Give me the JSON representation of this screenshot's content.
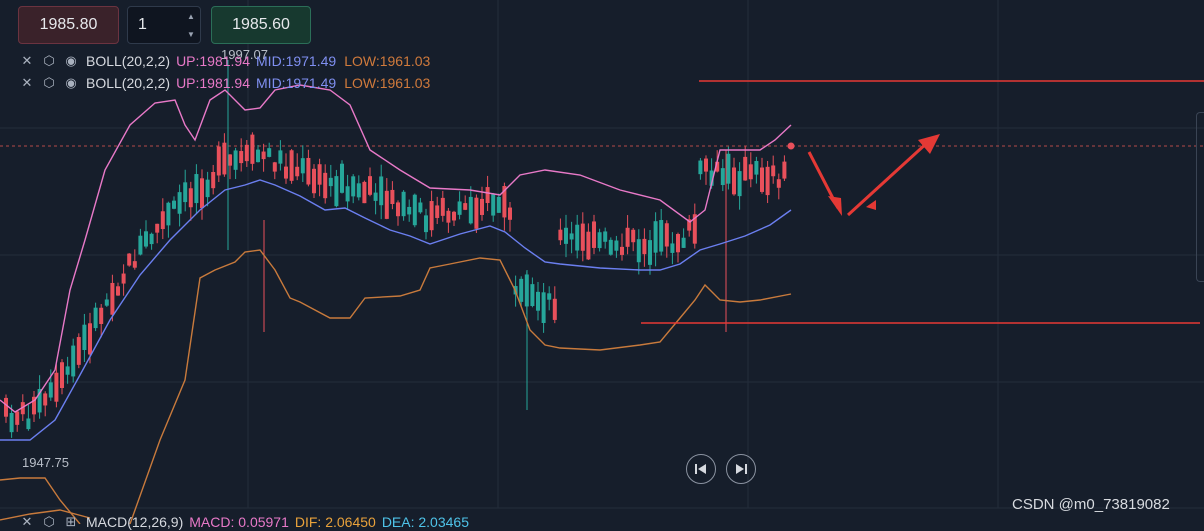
{
  "trade_bar": {
    "sell_price": "1985.80",
    "quantity": "1",
    "buy_price": "1985.60",
    "increment_icon": "triangle-up-icon",
    "decrement_icon": "triangle-down-icon"
  },
  "indicators": {
    "boll_rows": [
      {
        "name": "BOLL(20,2,2)",
        "up": "UP:1981.94",
        "mid": "MID:1971.49",
        "low": "LOW:1961.03"
      },
      {
        "name": "BOLL(20,2,2)",
        "up": "UP:1981.94",
        "mid": "MID:1971.49",
        "low": "LOW:1961.03"
      }
    ],
    "macd_row": {
      "name": "MACD(12,26,9)",
      "macd": "MACD: 0.05971",
      "dif": "DIF: 2.06450",
      "dea": "DEA: 2.03465"
    },
    "icons": [
      "close-icon",
      "settings-icon",
      "eye-icon"
    ]
  },
  "chart": {
    "high_marker": "1997.07",
    "low_marker": "1947.75",
    "colors": {
      "background": "#161e2b",
      "grid": "#242d3b",
      "up_candle": "#e8505b",
      "down_candle": "#26a69a",
      "boll_up": "#e879c8",
      "boll_mid": "#6b7ff0",
      "boll_low": "#c87a3c",
      "annotation": "#e53935",
      "current_price_line": "#b44a4a"
    }
  },
  "chart_data": {
    "type": "candlestick",
    "indicator": "BOLL(20,2,2)",
    "last_values": {
      "up": 1981.94,
      "mid": 1971.49,
      "low": 1961.03
    },
    "extremes": {
      "high": 1997.07,
      "low": 1947.75
    },
    "annotations": [
      "two horizontal red lines",
      "red arrow pointing down-right then up-right"
    ]
  },
  "navigation": {
    "prev_icon": "skip-back-icon",
    "next_icon": "skip-forward-icon"
  },
  "watermark": "CSDN @m0_73819082"
}
